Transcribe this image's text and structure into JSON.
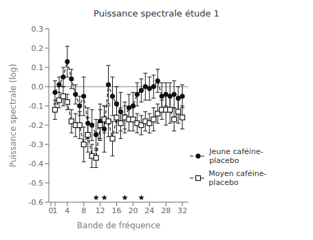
{
  "chart_data": {
    "type": "line",
    "title": "Puissance spectrale étude 1",
    "x_label": "Bande de fréquence",
    "y_label": "Puissance spectrale (log)",
    "x": [
      1,
      2,
      3,
      4,
      5,
      6,
      7,
      8,
      9,
      10,
      11,
      12,
      13,
      14,
      15,
      16,
      17,
      18,
      19,
      20,
      21,
      22,
      23,
      24,
      25,
      26,
      27,
      28,
      29,
      30,
      31,
      32
    ],
    "series": [
      {
        "name": "Jeune caféine-placebo",
        "color": "#111111",
        "marker": "circle",
        "line_style": "dashed",
        "values": [
          -0.03,
          0.01,
          0.05,
          0.13,
          0.04,
          -0.04,
          -0.1,
          -0.05,
          -0.19,
          -0.2,
          -0.25,
          -0.18,
          -0.22,
          0.01,
          -0.05,
          -0.09,
          -0.13,
          -0.16,
          -0.11,
          -0.1,
          -0.04,
          -0.02,
          0.0,
          -0.01,
          0.0,
          0.03,
          -0.05,
          -0.04,
          -0.05,
          -0.04,
          -0.06,
          -0.05
        ],
        "errors": [
          0.06,
          0.04,
          0.05,
          0.08,
          0.05,
          0.05,
          0.05,
          0.1,
          0.08,
          0.08,
          0.08,
          0.09,
          0.12,
          0.1,
          0.1,
          0.09,
          0.1,
          0.08,
          0.07,
          0.07,
          0.06,
          0.06,
          0.07,
          0.06,
          0.06,
          0.06,
          0.07,
          0.06,
          0.07,
          0.07,
          0.06,
          0.06
        ]
      },
      {
        "name": "Moyen caféine-placebo",
        "color": "#111111",
        "marker": "square",
        "line_style": "dashed",
        "values": [
          -0.12,
          -0.07,
          -0.05,
          -0.08,
          -0.18,
          -0.2,
          -0.2,
          -0.3,
          -0.25,
          -0.36,
          -0.37,
          -0.2,
          -0.17,
          -0.18,
          -0.27,
          -0.16,
          -0.19,
          -0.16,
          -0.17,
          -0.17,
          -0.19,
          -0.2,
          -0.18,
          -0.19,
          -0.17,
          -0.14,
          -0.12,
          -0.12,
          -0.12,
          -0.17,
          -0.13,
          -0.16
        ],
        "errors": [
          0.05,
          0.04,
          0.05,
          0.04,
          0.06,
          0.06,
          0.07,
          0.09,
          0.09,
          0.06,
          0.05,
          0.08,
          0.07,
          0.08,
          0.09,
          0.08,
          0.08,
          0.06,
          0.06,
          0.06,
          0.05,
          0.05,
          0.05,
          0.05,
          0.06,
          0.05,
          0.05,
          0.08,
          0.07,
          0.06,
          0.06,
          0.06
        ]
      }
    ],
    "xlim": [
      -0.5,
      33.5
    ],
    "xticks": [
      0,
      1,
      4,
      8,
      12,
      16,
      20,
      24,
      28,
      32
    ],
    "ylim": [
      -0.6,
      0.3
    ],
    "yticks": [
      -0.6,
      -0.5,
      -0.4,
      -0.3,
      -0.2,
      -0.1,
      {
        "value": 0,
        "label": "0.0"
      },
      0.1,
      0.2,
      0.3
    ],
    "reference_lines": [
      {
        "y": 0,
        "color": "gray"
      }
    ],
    "annotations": [
      {
        "text": "★",
        "x": 11,
        "y": -0.575
      },
      {
        "text": "★",
        "x": 13,
        "y": -0.575
      },
      {
        "text": "★",
        "x": 18,
        "y": -0.575
      },
      {
        "text": "★",
        "x": 22,
        "y": -0.575
      }
    ],
    "legend": "lower right",
    "grid": false
  }
}
